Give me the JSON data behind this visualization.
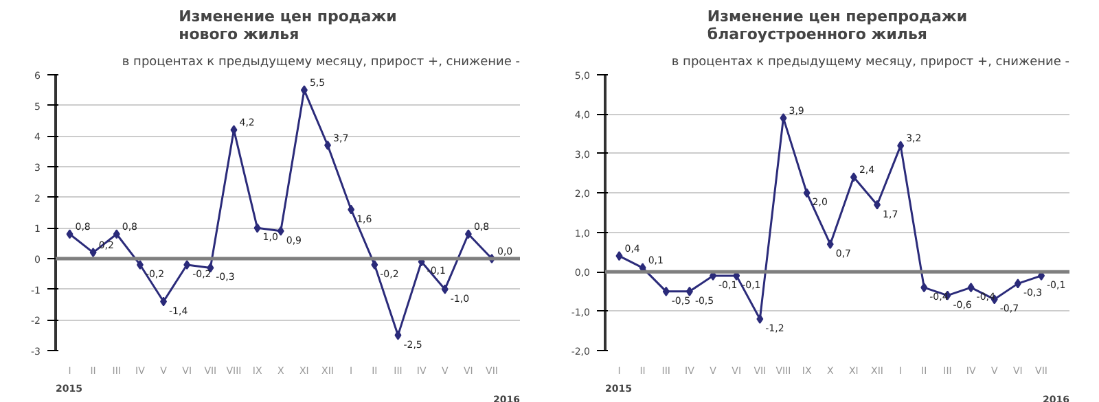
{
  "chart_data": [
    {
      "type": "line",
      "title": "Изменение цен продажи\nнового жилья",
      "subtitle": "в процентах к предыдущему месяцу, прирост +, снижение -",
      "categories": [
        "I",
        "II",
        "III",
        "IV",
        "V",
        "VI",
        "VII",
        "VIII",
        "IX",
        "X",
        "XI",
        "XII",
        "I",
        "II",
        "III",
        "IV",
        "V",
        "VI",
        "VII"
      ],
      "series": [
        {
          "color": "#2b2b7a",
          "values": [
            0.8,
            0.2,
            0.8,
            -0.2,
            -1.4,
            -0.2,
            -0.3,
            4.2,
            1.0,
            0.9,
            5.5,
            3.7,
            1.6,
            -0.2,
            -2.5,
            -0.1,
            -1.0,
            0.8,
            0.0
          ],
          "value_labels": [
            "0,8",
            "0,2",
            "0,8",
            "-0,2",
            "-1,4",
            "-0,2",
            "-0,3",
            "4,2",
            "1,0",
            "0,9",
            "5,5",
            "3,7",
            "1,6",
            "-0,2",
            "-2,5",
            "-0,1",
            "-1,0",
            "0,8",
            "0,0"
          ]
        }
      ],
      "ylim": [
        -3,
        6
      ],
      "yticks": [
        -3,
        -2,
        -1,
        0,
        1,
        2,
        3,
        4,
        5,
        6
      ],
      "grid": "y",
      "marker": "diamond",
      "line_style": "solid",
      "ref_lines": [
        {
          "axis": "y",
          "value": 0,
          "color": "#7f7f7f"
        }
      ],
      "annotations": [
        "2015",
        "2016"
      ]
    },
    {
      "type": "line",
      "title": "Изменение цен перепродажи\nблагоустроенного жилья",
      "subtitle": "в процентах к предыдущему месяцу, прирост +, снижение -",
      "categories": [
        "I",
        "II",
        "III",
        "IV",
        "V",
        "VI",
        "VII",
        "VIII",
        "IX",
        "X",
        "XI",
        "XII",
        "I",
        "II",
        "III",
        "IV",
        "V",
        "VI",
        "VII"
      ],
      "series": [
        {
          "color": "#2b2b7a",
          "values": [
            0.4,
            0.1,
            -0.5,
            -0.5,
            -0.1,
            -0.1,
            -1.2,
            3.9,
            2.0,
            0.7,
            2.4,
            1.7,
            3.2,
            -0.4,
            -0.6,
            -0.4,
            -0.7,
            -0.3,
            -0.1
          ],
          "value_labels": [
            "0,4",
            "0,1",
            "-0,5",
            "-0,5",
            "-0,1",
            "-0,1",
            "-1,2",
            "3,9",
            "2,0",
            "0,7",
            "2,4",
            "1,7",
            "3,2",
            "-0,4",
            "-0,6",
            "-0,4",
            "-0,7",
            "-0,3",
            "-0,1"
          ]
        }
      ],
      "ylim": [
        -2,
        5
      ],
      "yticks": [
        {
          "value": -2,
          "label": "-2,0"
        },
        {
          "value": -1,
          "label": "-1,0"
        },
        {
          "value": 0,
          "label": "0,0"
        },
        {
          "value": 1,
          "label": "1,0"
        },
        {
          "value": 2,
          "label": "2,0"
        },
        {
          "value": 3,
          "label": "3,0"
        },
        {
          "value": 4,
          "label": "4,0"
        },
        {
          "value": 5,
          "label": "5,0"
        }
      ],
      "grid": "y",
      "marker": "diamond",
      "line_style": "solid",
      "ref_lines": [
        {
          "axis": "y",
          "value": 0,
          "color": "#7f7f7f"
        }
      ],
      "annotations": [
        "2015",
        "2016"
      ]
    }
  ]
}
